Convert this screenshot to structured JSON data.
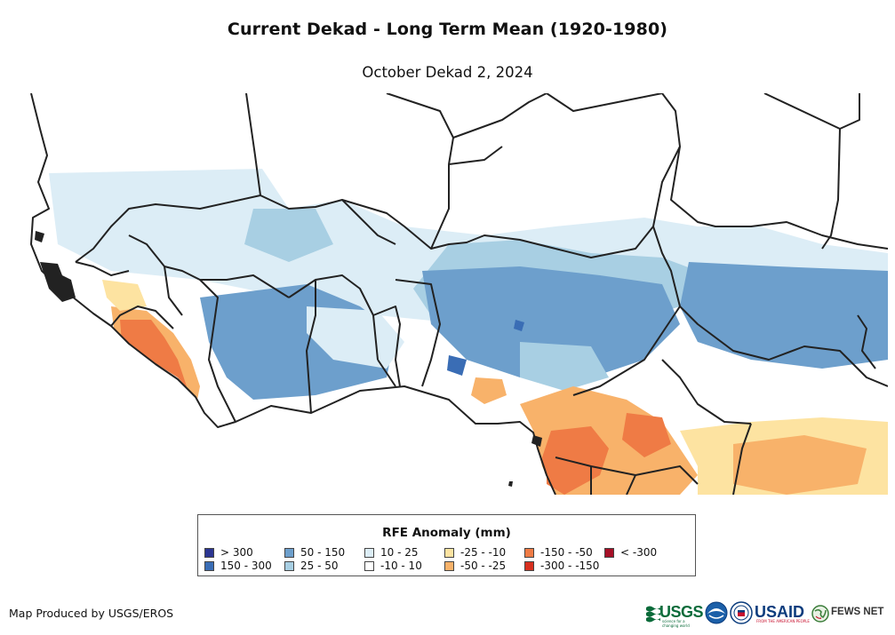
{
  "title": "Current Dekad - Long Term Mean (1920-1980)",
  "subtitle": "October Dekad 2, 2024",
  "legend": {
    "title": "RFE Anomaly (mm)",
    "items": [
      {
        "label": "> 300",
        "color": "#2b3591"
      },
      {
        "label": "150 - 300",
        "color": "#3a6db5"
      },
      {
        "label": "50 - 150",
        "color": "#6d9fcc"
      },
      {
        "label": "25 - 50",
        "color": "#a8cfe3"
      },
      {
        "label": "10 - 25",
        "color": "#dcedf6"
      },
      {
        "label": "-10 - 10",
        "color": "#ffffff"
      },
      {
        "label": "-25 - -10",
        "color": "#fde3a1"
      },
      {
        "label": "-50 - -25",
        "color": "#f8b26a"
      },
      {
        "label": "-150 - -50",
        "color": "#ef7b45"
      },
      {
        "label": "-300 - -150",
        "color": "#d7301f"
      },
      {
        "label": "< -300",
        "color": "#a50f26"
      }
    ]
  },
  "credit": "Map Produced by USGS/EROS",
  "logos": {
    "usgs": "USGS",
    "usgs_tagline": "science for a changing world",
    "noaa_icon": "noaa-logo-icon",
    "dos_icon": "state-department-seal-icon",
    "usaid": "USAID",
    "usaid_tagline": "FROM THE AMERICAN PEOPLE",
    "fews": "FEWS NET"
  }
}
